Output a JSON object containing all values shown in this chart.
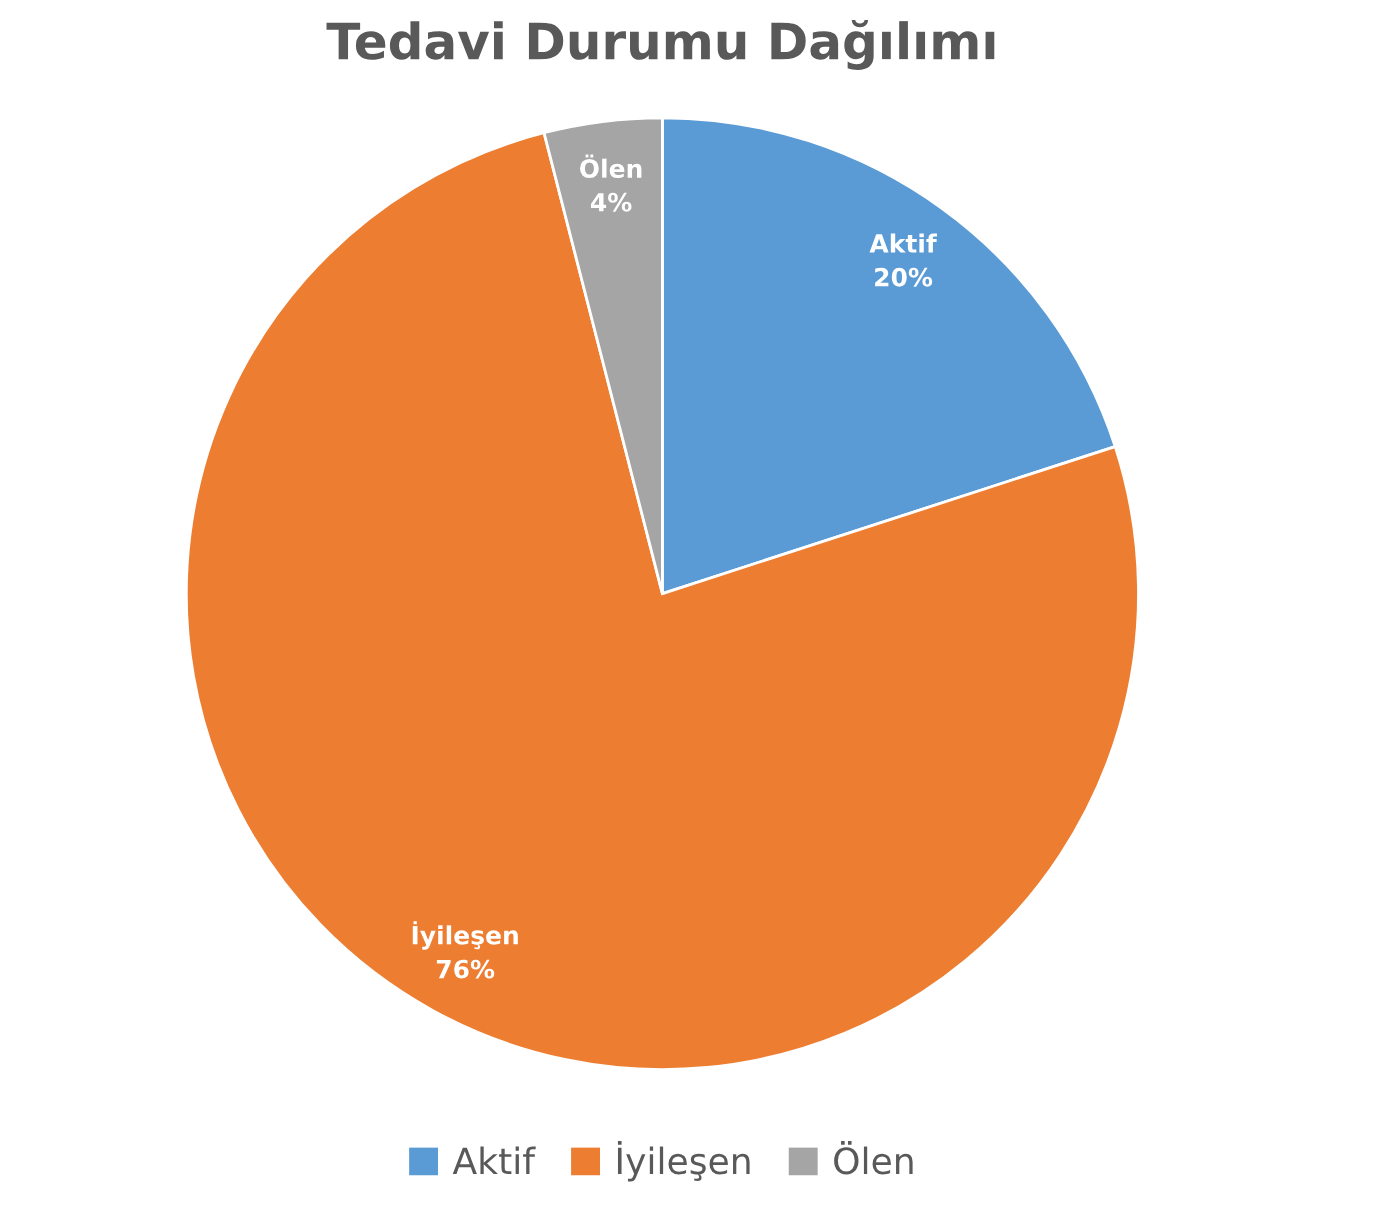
{
  "chart_data": {
    "type": "pie",
    "title": "Tedavi Durumu Dağılımı",
    "categories": [
      "Aktif",
      "İyileşen",
      "Ölen"
    ],
    "values": [
      20,
      76,
      4
    ],
    "colors": [
      "#5b9bd5",
      "#ed7d31",
      "#a5a5a5"
    ],
    "value_labels": [
      "20%",
      "76%",
      "4%"
    ],
    "legend": "bottom"
  }
}
